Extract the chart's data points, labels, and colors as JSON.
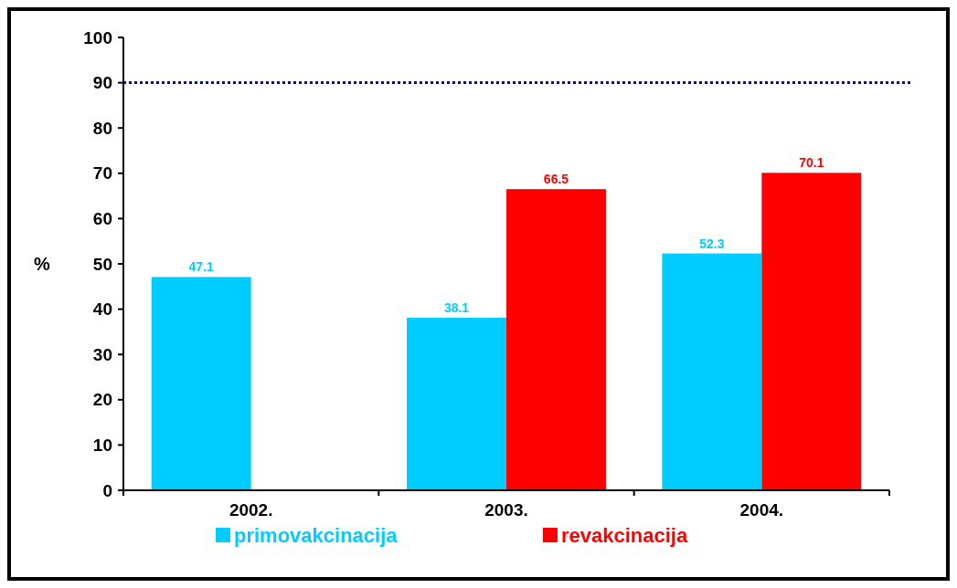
{
  "chart_data": {
    "type": "bar",
    "ylabel": "%",
    "categories": [
      "2002.",
      "2003.",
      "2004."
    ],
    "series": [
      {
        "name": "primovakcinacija",
        "color": "#00ccff",
        "values": [
          47.1,
          38.1,
          52.3
        ]
      },
      {
        "name": "revakcinacija",
        "color": "#ff0000",
        "values": [
          null,
          66.5,
          70.1
        ]
      }
    ],
    "ylim": [
      0,
      100
    ],
    "yticks": [
      0,
      10,
      20,
      30,
      40,
      50,
      60,
      70,
      80,
      90,
      100
    ],
    "ref_lines": [
      {
        "axis": "y",
        "value": 90,
        "color": "#0000cc",
        "line_style": "dotted"
      }
    ],
    "data_labels": true,
    "legend": "bottom",
    "grid": false
  }
}
